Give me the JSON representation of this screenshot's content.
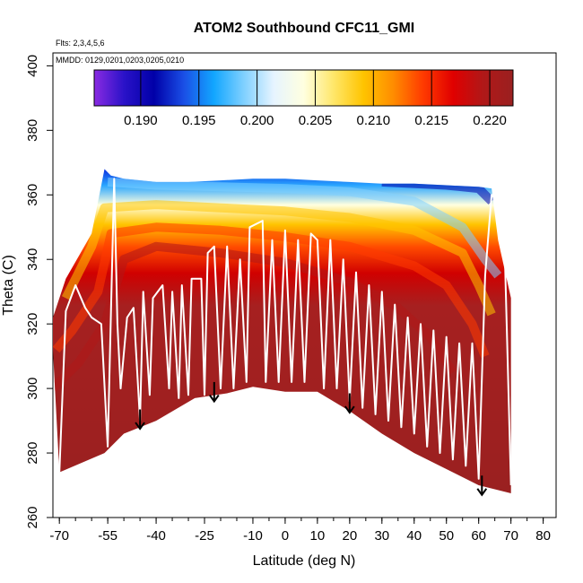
{
  "chart_data": {
    "type": "heatmap",
    "title": "ATOM2 Southbound CFC11_GMI",
    "xlabel": "Latitude (deg N)",
    "ylabel": "Theta (C)",
    "xlim": [
      -72,
      84
    ],
    "ylim": [
      260,
      404
    ],
    "x_ticks": [
      -70,
      -55,
      -40,
      -25,
      -10,
      0,
      10,
      20,
      30,
      40,
      50,
      60,
      70,
      80
    ],
    "y_ticks": [
      260,
      280,
      300,
      320,
      340,
      360,
      380,
      400
    ],
    "annotations": {
      "flights": "Flts: 2,3,4,5,6",
      "dates": "MMDD: 0129,0201,0203,0205,0210"
    },
    "colorbar": {
      "min": 0.186,
      "max": 0.222,
      "ticks": [
        0.19,
        0.195,
        0.2,
        0.205,
        0.21,
        0.215,
        0.22
      ],
      "tick_labels": [
        "0.190",
        "0.195",
        "0.200",
        "0.205",
        "0.210",
        "0.215",
        "0.220"
      ],
      "colors": [
        "#8a2be2",
        "#2a12c8",
        "#0000a8",
        "#1a4fe6",
        "#12a6ff",
        "#7fd0ff",
        "#e6f4ff",
        "#ffffe0",
        "#ffe76a",
        "#ffc400",
        "#ff8c00",
        "#ff3a00",
        "#e00000",
        "#b01818",
        "#9a2020"
      ]
    },
    "data_region": {
      "top_boundary": [
        [
          -72,
          322
        ],
        [
          -68,
          334
        ],
        [
          -60,
          348
        ],
        [
          -56,
          368
        ],
        [
          -54,
          366
        ],
        [
          -50,
          365
        ],
        [
          -40,
          364
        ],
        [
          -30,
          364
        ],
        [
          -20,
          364.5
        ],
        [
          -10,
          365
        ],
        [
          0,
          365
        ],
        [
          10,
          364.5
        ],
        [
          20,
          364
        ],
        [
          30,
          363.5
        ],
        [
          40,
          363.5
        ],
        [
          50,
          363
        ],
        [
          60,
          362.5
        ],
        [
          64,
          362
        ],
        [
          66,
          346
        ],
        [
          70,
          328
        ]
      ],
      "bottom_boundary": [
        [
          -72,
          312
        ],
        [
          -70,
          274
        ],
        [
          -56,
          280
        ],
        [
          -50,
          286
        ],
        [
          -40,
          290
        ],
        [
          -28,
          297
        ],
        [
          -18,
          298.5
        ],
        [
          -10,
          300.5
        ],
        [
          0,
          299
        ],
        [
          10,
          299
        ],
        [
          20,
          293
        ],
        [
          30,
          286
        ],
        [
          40,
          280
        ],
        [
          50,
          275
        ],
        [
          60,
          270
        ],
        [
          70,
          267.5
        ]
      ],
      "isolines": [
        {
          "value": 0.19,
          "points": [
            [
              30,
              364
            ],
            [
              50,
              363
            ],
            [
              60,
              362
            ],
            [
              64,
              358
            ]
          ]
        },
        {
          "value": 0.2,
          "points": [
            [
              -55,
              364
            ],
            [
              -40,
              363
            ],
            [
              -20,
              362.5
            ],
            [
              0,
              362
            ],
            [
              20,
              361
            ],
            [
              40,
              358
            ],
            [
              55,
              350
            ],
            [
              62,
              340
            ],
            [
              66,
              335
            ]
          ]
        },
        {
          "value": 0.21,
          "points": [
            [
              -68,
              328
            ],
            [
              -60,
              344
            ],
            [
              -56,
              356
            ],
            [
              -40,
              357
            ],
            [
              -20,
              356
            ],
            [
              0,
              355
            ],
            [
              20,
              353
            ],
            [
              40,
              349
            ],
            [
              55,
              342
            ],
            [
              60,
              332
            ],
            [
              64,
              323
            ]
          ]
        },
        {
          "value": 0.215,
          "points": [
            [
              -71,
              312
            ],
            [
              -66,
              318
            ],
            [
              -58,
              330
            ],
            [
              -54,
              348
            ],
            [
              -40,
              350
            ],
            [
              -20,
              349
            ],
            [
              0,
              347
            ],
            [
              20,
              344
            ],
            [
              40,
              338
            ],
            [
              50,
              332
            ],
            [
              58,
              320
            ],
            [
              62,
              310
            ]
          ]
        },
        {
          "value": 0.22,
          "points": [
            [
              -72,
              300
            ],
            [
              -64,
              308
            ],
            [
              -56,
              320
            ],
            [
              -50,
              340
            ],
            [
              -40,
              344
            ],
            [
              -20,
              342
            ],
            [
              0,
              339
            ],
            [
              20,
              333
            ],
            [
              35,
              325
            ],
            [
              45,
              316
            ],
            [
              52,
              305
            ]
          ]
        }
      ]
    },
    "flight_track": [
      [
        -70,
        274
      ],
      [
        -68,
        324
      ],
      [
        -65,
        332
      ],
      [
        -62,
        325
      ],
      [
        -60,
        322
      ],
      [
        -57,
        320
      ],
      [
        -55,
        282
      ],
      [
        -53,
        365
      ],
      [
        -52,
        320
      ],
      [
        -51,
        300
      ],
      [
        -49,
        322
      ],
      [
        -47,
        325
      ],
      [
        -45,
        290
      ],
      [
        -44,
        330
      ],
      [
        -42,
        298
      ],
      [
        -41,
        328
      ],
      [
        -38,
        332
      ],
      [
        -36,
        300
      ],
      [
        -35,
        330
      ],
      [
        -33,
        297
      ],
      [
        -32,
        332
      ],
      [
        -30,
        298
      ],
      [
        -29,
        334
      ],
      [
        -26,
        334
      ],
      [
        -25,
        298
      ],
      [
        -24,
        342
      ],
      [
        -22,
        344
      ],
      [
        -20,
        300
      ],
      [
        -18,
        344
      ],
      [
        -16,
        300
      ],
      [
        -14,
        340
      ],
      [
        -12,
        302
      ],
      [
        -11,
        350
      ],
      [
        -7,
        352
      ],
      [
        -6,
        302
      ],
      [
        -4,
        346
      ],
      [
        -2,
        302
      ],
      [
        0,
        349
      ],
      [
        2,
        302
      ],
      [
        4,
        346
      ],
      [
        6,
        302
      ],
      [
        8,
        348
      ],
      [
        10,
        346
      ],
      [
        12,
        300
      ],
      [
        14,
        346
      ],
      [
        16,
        300
      ],
      [
        18,
        340
      ],
      [
        20,
        296
      ],
      [
        22,
        336
      ],
      [
        24,
        294
      ],
      [
        26,
        332
      ],
      [
        28,
        292
      ],
      [
        30,
        330
      ],
      [
        32,
        290
      ],
      [
        34,
        326
      ],
      [
        36,
        288
      ],
      [
        38,
        322
      ],
      [
        40,
        286
      ],
      [
        42,
        320
      ],
      [
        44,
        282
      ],
      [
        46,
        318
      ],
      [
        48,
        280
      ],
      [
        50,
        316
      ],
      [
        52,
        278
      ],
      [
        54,
        314
      ],
      [
        56,
        276
      ],
      [
        58,
        314
      ],
      [
        60,
        272
      ],
      [
        62,
        335
      ],
      [
        64,
        360
      ],
      [
        66,
        358
      ],
      [
        68,
        345
      ],
      [
        70,
        270
      ]
    ],
    "arrows": [
      {
        "x": -45,
        "y_from": 293.5,
        "y_to": 287.5
      },
      {
        "x": -22,
        "y_from": 302,
        "y_to": 296
      },
      {
        "x": 20,
        "y_from": 298.5,
        "y_to": 292.5
      },
      {
        "x": 61,
        "y_from": 273,
        "y_to": 267
      }
    ]
  }
}
